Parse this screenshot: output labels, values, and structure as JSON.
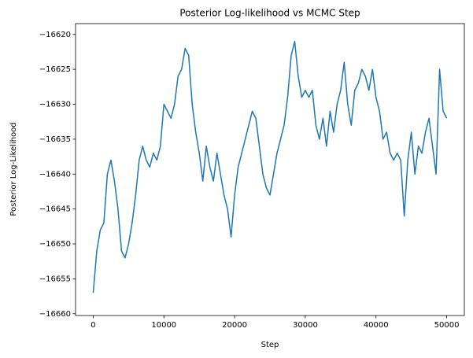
{
  "chart_data": {
    "type": "line",
    "title": "Posterior Log-likelihood vs MCMC Step",
    "xlabel": "Step",
    "ylabel": "Posterior Log-Likelihood",
    "color": "#1f77b4",
    "x": [
      0,
      500,
      1000,
      1500,
      2000,
      2500,
      3000,
      3500,
      4000,
      4500,
      5000,
      5500,
      6000,
      6500,
      7000,
      7500,
      8000,
      8500,
      9000,
      9500,
      10000,
      10500,
      11000,
      11500,
      12000,
      12500,
      13000,
      13500,
      14000,
      14500,
      15000,
      15500,
      16000,
      16500,
      17000,
      17500,
      18000,
      18500,
      19000,
      19500,
      20000,
      20500,
      21000,
      21500,
      22000,
      22500,
      23000,
      23500,
      24000,
      24500,
      25000,
      25500,
      26000,
      26500,
      27000,
      27500,
      28000,
      28500,
      29000,
      29500,
      30000,
      30500,
      31000,
      31500,
      32000,
      32500,
      33000,
      33500,
      34000,
      34500,
      35000,
      35500,
      36000,
      36500,
      37000,
      37500,
      38000,
      38500,
      39000,
      39500,
      40000,
      40500,
      41000,
      41500,
      42000,
      42500,
      43000,
      43500,
      44000,
      44500,
      45000,
      45500,
      46000,
      46500,
      47000,
      47500,
      48000,
      48500,
      49000,
      49500,
      50000
    ],
    "values": [
      -16657,
      -16651,
      -16648,
      -16647,
      -16640,
      -16638,
      -16641,
      -16645,
      -16651,
      -16652,
      -16650,
      -16647,
      -16643,
      -16638,
      -16636,
      -16638,
      -16639,
      -16637,
      -16638,
      -16636,
      -16630,
      -16631,
      -16632,
      -16630,
      -16626,
      -16625,
      -16622,
      -16623,
      -16630,
      -16634,
      -16637,
      -16641,
      -16636,
      -16639,
      -16641,
      -16637,
      -16640,
      -16643,
      -16645,
      -16649,
      -16643,
      -16639,
      -16637,
      -16635,
      -16633,
      -16631,
      -16632,
      -16636,
      -16640,
      -16642,
      -16643,
      -16640,
      -16637,
      -16635,
      -16633,
      -16629,
      -16623,
      -16621,
      -16626,
      -16629,
      -16628,
      -16629,
      -16628,
      -16633,
      -16635,
      -16632,
      -16636,
      -16631,
      -16634,
      -16630,
      -16628,
      -16624,
      -16630,
      -16633,
      -16628,
      -16627,
      -16625,
      -16626,
      -16628,
      -16625,
      -16629,
      -16631,
      -16635,
      -16634,
      -16637,
      -16638,
      -16637,
      -16638,
      -16646,
      -16638,
      -16634,
      -16640,
      -16636,
      -16637,
      -16634,
      -16632,
      -16636,
      -16640,
      -16625,
      -16631,
      -16632
    ],
    "xlim": [
      -2500,
      52500
    ],
    "ylim": [
      -16660.25,
      -16618.45
    ],
    "xticks": [
      0,
      10000,
      20000,
      30000,
      40000,
      50000
    ],
    "yticks": [
      {
        "value": -16660,
        "label": "−16660"
      },
      {
        "value": -16655,
        "label": "−16655"
      },
      {
        "value": -16650,
        "label": "−16650"
      },
      {
        "value": -16645,
        "label": "−16645"
      },
      {
        "value": -16640,
        "label": "−16640"
      },
      {
        "value": -16635,
        "label": "−16635"
      },
      {
        "value": -16630,
        "label": "−16630"
      },
      {
        "value": -16625,
        "label": "−16625"
      },
      {
        "value": -16620,
        "label": "−16620"
      }
    ],
    "grid": false
  }
}
